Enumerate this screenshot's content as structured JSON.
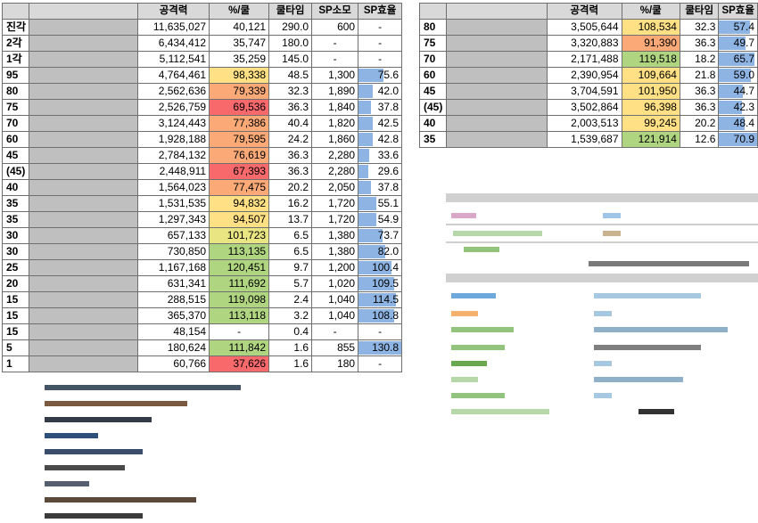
{
  "colors": {
    "red": "#f8696b",
    "orange": "#fbaa77",
    "yellow": "#ffe084",
    "lightyellow": "#e9e583",
    "green": "#b0d580",
    "bar": "#8db4e2"
  },
  "left_table": {
    "headers": [
      "",
      "",
      "공격력",
      "%/쿨",
      "쿨타임",
      "SP소모",
      "SP효율"
    ],
    "rows": [
      {
        "lvl": "진각",
        "atk": "11,635,027",
        "pct": "40,121",
        "cd": "290.0",
        "sp": "600",
        "eff": "-",
        "pct_color": "",
        "eff_bar": 0
      },
      {
        "lvl": "2각",
        "atk": "6,434,412",
        "pct": "35,747",
        "cd": "180.0",
        "sp": "-",
        "eff": "-",
        "pct_color": "",
        "eff_bar": 0
      },
      {
        "lvl": "1각",
        "atk": "5,112,541",
        "pct": "35,259",
        "cd": "145.0",
        "sp": "-",
        "eff": "-",
        "pct_color": "",
        "eff_bar": 0
      },
      {
        "lvl": "95",
        "atk": "4,764,461",
        "pct": "98,338",
        "cd": "48.5",
        "sp": "1,300",
        "eff": "75.6",
        "pct_color": "#ffe084",
        "eff_bar": 0.578
      },
      {
        "lvl": "80",
        "atk": "2,562,636",
        "pct": "79,339",
        "cd": "32.3",
        "sp": "1,890",
        "eff": "42.0",
        "pct_color": "#fbaa77",
        "eff_bar": 0.321
      },
      {
        "lvl": "75",
        "atk": "2,526,759",
        "pct": "69,536",
        "cd": "36.3",
        "sp": "1,840",
        "eff": "37.8",
        "pct_color": "#f8696b",
        "eff_bar": 0.289
      },
      {
        "lvl": "70",
        "atk": "3,124,443",
        "pct": "77,386",
        "cd": "40.4",
        "sp": "1,820",
        "eff": "42.5",
        "pct_color": "#fbaa77",
        "eff_bar": 0.325
      },
      {
        "lvl": "60",
        "atk": "1,928,188",
        "pct": "79,595",
        "cd": "24.2",
        "sp": "1,860",
        "eff": "42.8",
        "pct_color": "#fbaa77",
        "eff_bar": 0.327
      },
      {
        "lvl": "45",
        "atk": "2,784,132",
        "pct": "76,619",
        "cd": "36.3",
        "sp": "2,280",
        "eff": "33.6",
        "pct_color": "#fbaa77",
        "eff_bar": 0.257
      },
      {
        "lvl": "(45)",
        "atk": "2,448,911",
        "pct": "67,393",
        "cd": "36.3",
        "sp": "2,280",
        "eff": "29.6",
        "pct_color": "#f8696b",
        "eff_bar": 0.226
      },
      {
        "lvl": "40",
        "atk": "1,564,023",
        "pct": "77,475",
        "cd": "20.2",
        "sp": "2,050",
        "eff": "37.8",
        "pct_color": "#fbaa77",
        "eff_bar": 0.289
      },
      {
        "lvl": "35",
        "atk": "1,531,535",
        "pct": "94,832",
        "cd": "16.2",
        "sp": "1,720",
        "eff": "55.1",
        "pct_color": "#ffe084",
        "eff_bar": 0.421
      },
      {
        "lvl": "35",
        "atk": "1,297,343",
        "pct": "94,507",
        "cd": "13.7",
        "sp": "1,720",
        "eff": "54.9",
        "pct_color": "#ffe084",
        "eff_bar": 0.42
      },
      {
        "lvl": "30",
        "atk": "657,133",
        "pct": "101,723",
        "cd": "6.5",
        "sp": "1,380",
        "eff": "73.7",
        "pct_color": "#e9e583",
        "eff_bar": 0.563
      },
      {
        "lvl": "30",
        "atk": "730,850",
        "pct": "113,135",
        "cd": "6.5",
        "sp": "1,380",
        "eff": "82.0",
        "pct_color": "#b0d580",
        "eff_bar": 0.627
      },
      {
        "lvl": "25",
        "atk": "1,167,168",
        "pct": "120,451",
        "cd": "9.7",
        "sp": "1,200",
        "eff": "100.4",
        "pct_color": "#b0d580",
        "eff_bar": 0.768
      },
      {
        "lvl": "20",
        "atk": "631,341",
        "pct": "111,692",
        "cd": "5.7",
        "sp": "1,020",
        "eff": "109.5",
        "pct_color": "#b0d580",
        "eff_bar": 0.837
      },
      {
        "lvl": "15",
        "atk": "288,515",
        "pct": "119,098",
        "cd": "2.4",
        "sp": "1,040",
        "eff": "114.5",
        "pct_color": "#b0d580",
        "eff_bar": 0.875
      },
      {
        "lvl": "15",
        "atk": "365,370",
        "pct": "113,118",
        "cd": "3.2",
        "sp": "1,040",
        "eff": "108.8",
        "pct_color": "#b0d580",
        "eff_bar": 0.832
      },
      {
        "lvl": "15",
        "atk": "48,154",
        "pct": "-",
        "cd": "0.4",
        "sp": "-",
        "eff": "-",
        "pct_color": "",
        "eff_bar": 0
      },
      {
        "lvl": "5",
        "atk": "180,624",
        "pct": "111,842",
        "cd": "1.6",
        "sp": "855",
        "eff": "130.8",
        "pct_color": "#b0d580",
        "eff_bar": 1.0
      },
      {
        "lvl": "1",
        "atk": "60,766",
        "pct": "37,626",
        "cd": "1.6",
        "sp": "180",
        "eff": "-",
        "pct_color": "#f8696b",
        "eff_bar": 0
      }
    ]
  },
  "right_table": {
    "headers": [
      "",
      "",
      "공격력",
      "%/쿨",
      "쿨타임",
      "SP효율"
    ],
    "rows": [
      {
        "lvl": "80",
        "atk": "3,505,644",
        "pct": "108,534",
        "cd": "32.3",
        "eff": "57.4",
        "pct_color": "#ffe084",
        "eff_bar": 0.81
      },
      {
        "lvl": "75",
        "atk": "3,320,883",
        "pct": "91,390",
        "cd": "36.3",
        "eff": "49.7",
        "pct_color": "#fbaa77",
        "eff_bar": 0.7
      },
      {
        "lvl": "70",
        "atk": "2,171,488",
        "pct": "119,518",
        "cd": "18.2",
        "eff": "65.7",
        "pct_color": "#b0d580",
        "eff_bar": 0.93
      },
      {
        "lvl": "60",
        "atk": "2,390,954",
        "pct": "109,664",
        "cd": "21.8",
        "eff": "59.0",
        "pct_color": "#ffe084",
        "eff_bar": 0.83
      },
      {
        "lvl": "45",
        "atk": "3,704,591",
        "pct": "101,950",
        "cd": "36.3",
        "eff": "44.7",
        "pct_color": "#ffe084",
        "eff_bar": 0.63
      },
      {
        "lvl": "(45)",
        "atk": "3,502,864",
        "pct": "96,398",
        "cd": "36.3",
        "eff": "42.3",
        "pct_color": "#ffe084",
        "eff_bar": 0.6
      },
      {
        "lvl": "40",
        "atk": "2,003,513",
        "pct": "99,245",
        "cd": "20.2",
        "eff": "48.4",
        "pct_color": "#ffe084",
        "eff_bar": 0.68
      },
      {
        "lvl": "35",
        "atk": "1,539,687",
        "pct": "121,914",
        "cd": "12.6",
        "eff": "70.9",
        "pct_color": "#b0d580",
        "eff_bar": 1.0
      }
    ]
  }
}
